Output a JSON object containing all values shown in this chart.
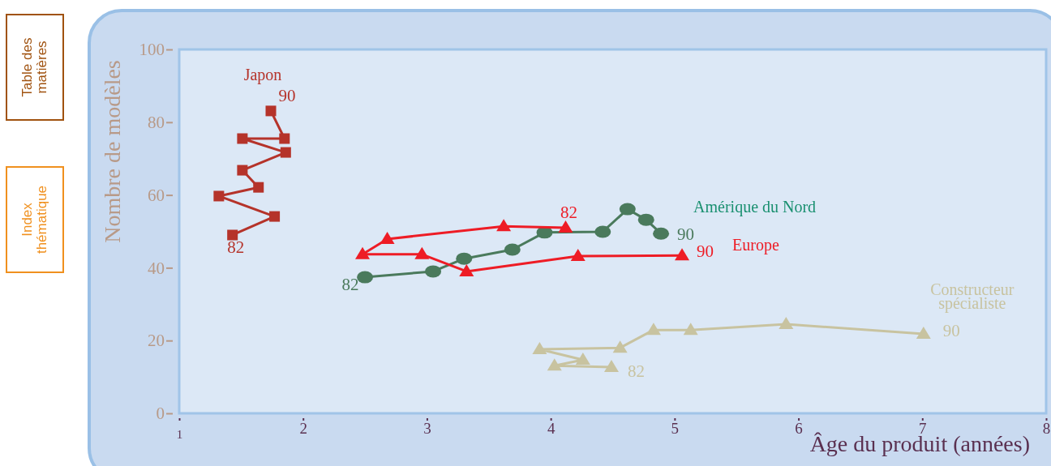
{
  "chart_data": {
    "type": "line",
    "xlabel": "Âge du produit (années)",
    "ylabel": "Nombre de modèles",
    "xlim": [
      1,
      8
    ],
    "xticks": [
      1,
      2,
      3,
      4,
      5,
      6,
      7,
      8
    ],
    "ylim": [
      0,
      100
    ],
    "yticks": [
      0,
      20,
      40,
      60,
      80,
      100
    ],
    "grid": false,
    "series": [
      {
        "name": "Japon",
        "color": "#b5332a",
        "marker": "square",
        "x": [
          1.43,
          1.77,
          1.32,
          1.64,
          1.51,
          1.86,
          1.51,
          1.85,
          1.74
        ],
        "values": [
          49.0,
          54.1,
          59.7,
          62.1,
          66.8,
          71.7,
          75.5,
          75.5,
          83.1
        ]
      },
      {
        "name": "Amérique du Nord",
        "color": "#4a7a5c",
        "marker": "circle",
        "x": [
          2.5,
          3.05,
          3.3,
          3.69,
          3.95,
          4.42,
          4.62,
          4.77,
          4.89
        ],
        "values": [
          37.4,
          39.0,
          42.5,
          45.0,
          49.7,
          49.9,
          56.1,
          53.2,
          49.4
        ]
      },
      {
        "name": "Europe",
        "color": "#ee1c25",
        "marker": "triangle",
        "x": [
          4.12,
          3.62,
          2.68,
          2.48,
          2.96,
          3.32,
          4.22,
          5.06
        ],
        "values": [
          51.0,
          51.4,
          47.9,
          43.7,
          43.7,
          39.0,
          43.2,
          43.4
        ]
      },
      {
        "name": "Constructeur spécialiste",
        "color": "#c8c3a0",
        "marker": "triangle",
        "x": [
          4.49,
          4.03,
          4.26,
          3.91,
          4.56,
          4.83,
          5.13,
          5.9,
          7.01
        ],
        "values": [
          12.7,
          13.1,
          14.7,
          17.6,
          18.0,
          22.9,
          22.9,
          24.5,
          21.8
        ]
      }
    ],
    "annotations": [
      {
        "text": "82",
        "x": 1.43,
        "y": 49.0
      },
      {
        "text": "90",
        "x": 1.74,
        "y": 83.1
      },
      {
        "text": "82",
        "x": 2.5,
        "y": 37.4
      },
      {
        "text": "90",
        "x": 4.89,
        "y": 49.4
      },
      {
        "text": "82",
        "x": 4.12,
        "y": 51.0
      },
      {
        "text": "90",
        "x": 5.06,
        "y": 43.4
      },
      {
        "text": "82",
        "x": 4.49,
        "y": 12.7
      },
      {
        "text": "90",
        "x": 7.01,
        "y": 21.8
      },
      "Table des matières",
      "Index thématique"
    ]
  }
}
